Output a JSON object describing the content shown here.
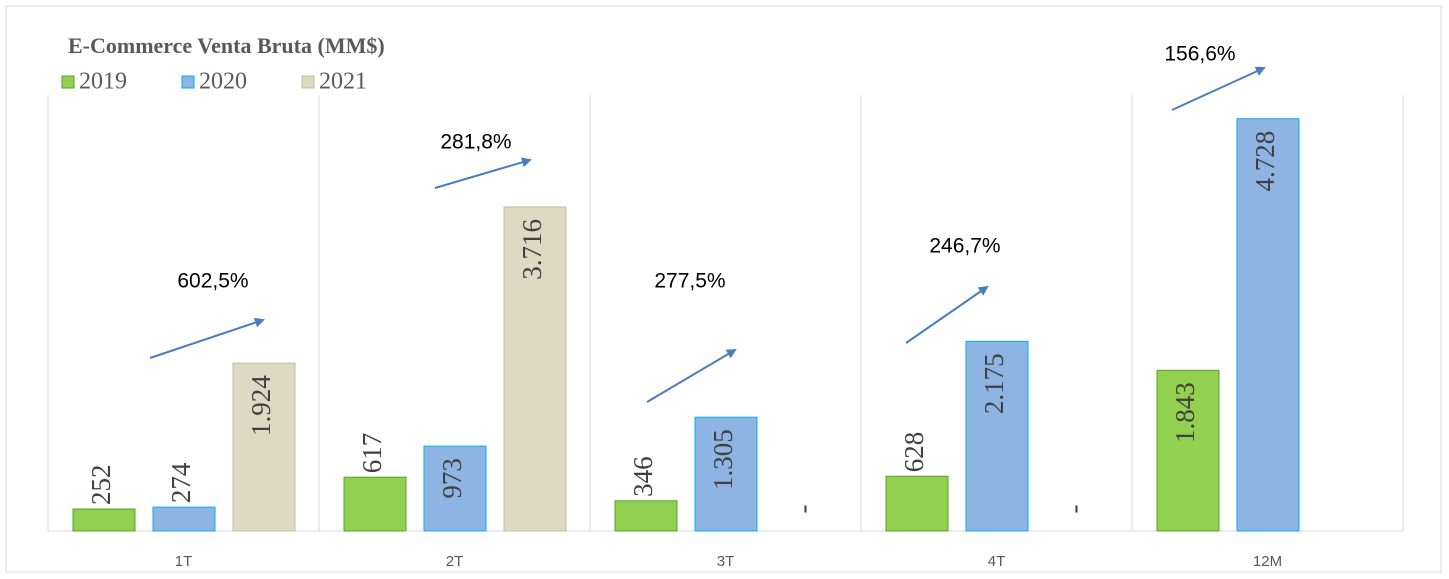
{
  "chart_data": {
    "type": "bar",
    "title": "E-Commerce Venta Bruta (MM$)",
    "categories": [
      "1T",
      "2T",
      "3T",
      "4T",
      "12M"
    ],
    "series": [
      {
        "name": "2019",
        "color": "#92d050",
        "values": [
          252,
          617,
          346,
          628,
          1843
        ],
        "value_labels": [
          "252",
          "617",
          "346",
          "628",
          "1.843"
        ]
      },
      {
        "name": "2020",
        "color": "#8eb4e3",
        "values": [
          274,
          973,
          1305,
          2175,
          4728
        ],
        "value_labels": [
          "274",
          "973",
          "1.305",
          "2.175",
          "4.728"
        ]
      },
      {
        "name": "2021",
        "color": "#ddd9c3",
        "values": [
          1924,
          3716,
          null,
          null,
          null
        ],
        "value_labels": [
          "1.924",
          "3.716",
          "-",
          "-",
          null
        ]
      }
    ],
    "annotations": [
      "602,5%",
      "281,8%",
      "277,5%",
      "246,7%",
      "156,6%"
    ],
    "ylim": [
      0,
      5000
    ],
    "legend": "top-left"
  }
}
